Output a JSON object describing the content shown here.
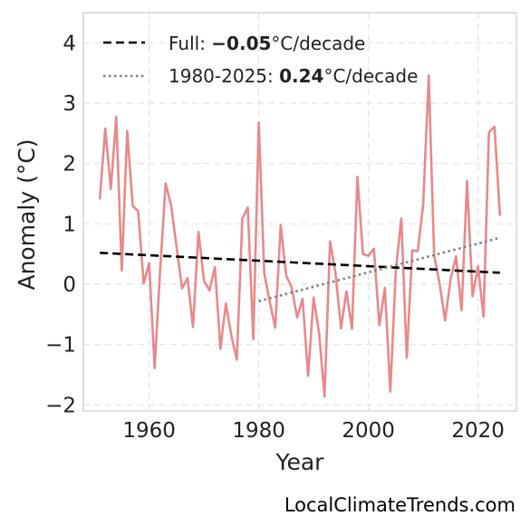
{
  "chart_data": {
    "type": "line",
    "title": "",
    "xlabel": "Year",
    "ylabel": "Anomaly (°C)",
    "xlim": [
      1948,
      2027
    ],
    "ylim": [
      -2.1,
      4.5
    ],
    "x_ticks": [
      1960,
      1980,
      2000,
      2020
    ],
    "x_tick_labels": [
      "1960",
      "1980",
      "2000",
      "2020"
    ],
    "y_ticks": [
      -2,
      -1,
      0,
      1,
      2,
      3,
      4
    ],
    "y_tick_labels": [
      "−2",
      "−1",
      "0",
      "1",
      "2",
      "3",
      "4"
    ],
    "grid": true,
    "legend_position": "top-left",
    "series": [
      {
        "name": "",
        "style": "solid",
        "color": "#e8898b",
        "x": [
          1951,
          1952,
          1953,
          1954,
          1955,
          1956,
          1957,
          1958,
          1959,
          1960,
          1961,
          1962,
          1963,
          1964,
          1965,
          1966,
          1967,
          1968,
          1969,
          1970,
          1971,
          1972,
          1973,
          1974,
          1975,
          1976,
          1977,
          1978,
          1979,
          1980,
          1981,
          1982,
          1983,
          1984,
          1985,
          1986,
          1987,
          1988,
          1989,
          1990,
          1991,
          1992,
          1993,
          1994,
          1995,
          1996,
          1997,
          1998,
          1999,
          2000,
          2001,
          2002,
          2003,
          2004,
          2005,
          2006,
          2007,
          2008,
          2009,
          2010,
          2011,
          2012,
          2013,
          2014,
          2015,
          2016,
          2017,
          2018,
          2019,
          2020,
          2021,
          2022,
          2023,
          2024
        ],
        "y": [
          1.42,
          2.58,
          1.58,
          2.77,
          0.23,
          2.54,
          1.3,
          1.21,
          0.01,
          0.35,
          -1.39,
          0.22,
          1.67,
          1.31,
          0.62,
          -0.07,
          0.1,
          -0.71,
          0.87,
          0.06,
          -0.1,
          0.28,
          -1.07,
          -0.32,
          -0.85,
          -1.25,
          1.09,
          1.27,
          -0.91,
          2.68,
          0.18,
          -0.29,
          -0.72,
          0.98,
          0.14,
          -0.05,
          -0.55,
          -0.24,
          -1.52,
          -0.22,
          -0.81,
          -1.86,
          0.71,
          0.19,
          -0.73,
          -0.12,
          -0.74,
          1.78,
          0.5,
          0.47,
          0.59,
          -0.68,
          -0.06,
          -1.78,
          0.23,
          1.09,
          -1.22,
          0.56,
          0.55,
          1.32,
          3.46,
          0.48,
          0.0,
          -0.6,
          0.09,
          0.46,
          -0.43,
          1.71,
          -0.2,
          0.3,
          -0.54,
          2.52,
          2.61,
          1.15
        ]
      },
      {
        "name": "Full",
        "style": "dashed",
        "color": "#000000",
        "trend_text": "−0.05",
        "unit": "°C/decade",
        "x": [
          1951,
          2024
        ],
        "y": [
          0.52,
          0.19
        ]
      },
      {
        "name": "1980-2025",
        "style": "dotted",
        "color": "#808080",
        "trend_text": "0.24",
        "unit": "°C/decade",
        "x": [
          1980,
          2024
        ],
        "y": [
          -0.28,
          0.77
        ]
      }
    ]
  },
  "legend": {
    "full_prefix": "Full: ",
    "full_value": "−0.05",
    "full_suffix": "°C/decade",
    "recent_prefix": "1980-2025: ",
    "recent_value": "0.24",
    "recent_suffix": "°C/decade"
  },
  "watermark": "LocalClimateTrends.com"
}
